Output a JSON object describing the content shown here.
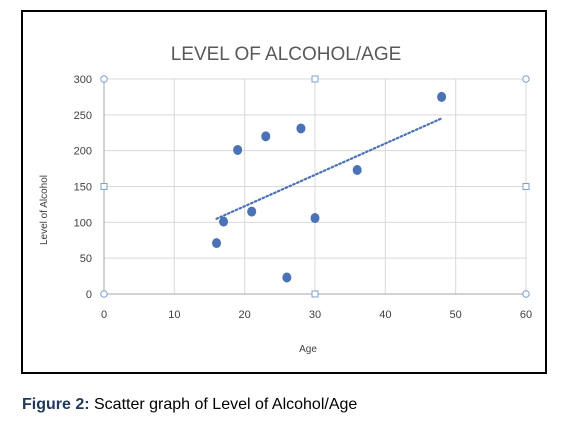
{
  "caption": {
    "lead": "Figure 2:",
    "text": " Scatter graph of Level of Alcohol/Age"
  },
  "colors": {
    "point": "#4a72b8",
    "trendline": "#4a72b8",
    "gridline": "#d9d9d9",
    "axis": "#a6a6a6",
    "handle": "#7aa0d0"
  },
  "chart_data": {
    "type": "scatter",
    "title": "LEVEL OF ALCOHOL/AGE",
    "xlabel": "Age",
    "ylabel": "Level of Alcohol",
    "xlim": [
      0,
      60
    ],
    "ylim": [
      0,
      300
    ],
    "x_ticks": [
      0,
      10,
      20,
      30,
      40,
      50,
      60
    ],
    "y_ticks": [
      0,
      50,
      100,
      150,
      200,
      250,
      300
    ],
    "grid": true,
    "legend": "none",
    "series": [
      {
        "x": [
          16,
          17,
          19,
          21,
          23,
          26,
          28,
          30,
          36,
          48
        ],
        "y": [
          71,
          101,
          201,
          115,
          220,
          23,
          231,
          106,
          173,
          275
        ]
      }
    ],
    "trendline": {
      "type": "linear",
      "style": "dotted",
      "x_start": 16,
      "x_end": 48,
      "y_start": 105,
      "y_end": 245
    }
  }
}
